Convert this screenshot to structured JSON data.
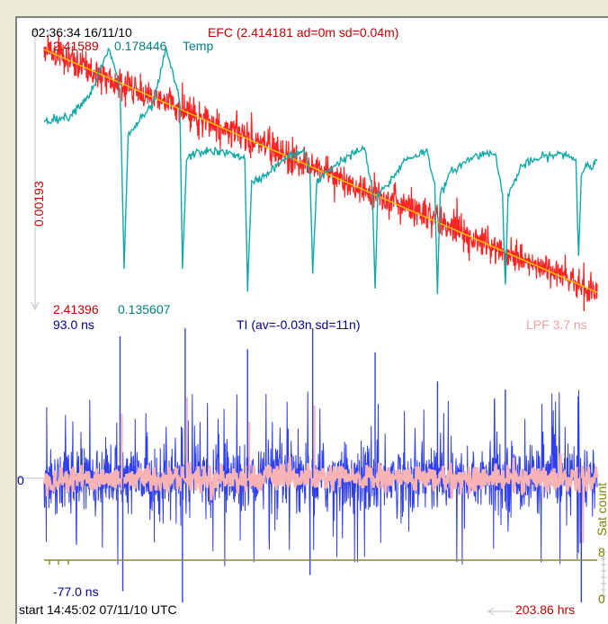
{
  "colors": {
    "efc": "#ff2222",
    "efc_trend": "#f0c800",
    "temp": "#13a8a8",
    "ti": "#2f3ff0",
    "lpf": "#f8b4b4",
    "sat": "#8b8b1a",
    "axis": "#c0c0c0",
    "text_dark": "#000000",
    "text_red": "#c00000",
    "text_navy": "#000090",
    "text_teal": "#008080",
    "text_pink": "#f0a0a0",
    "text_olive": "#808000"
  },
  "top_panel": {
    "timestamp": "02:36:34 16/11/10",
    "efc_label": "EFC (2.414181 ad=0m sd=0.04m)",
    "efc_top_value": "2.41589",
    "temp_top_value": "0.178446",
    "temp_label": "Temp",
    "scale_label": "0.00193",
    "efc_bottom_value": "2.41396",
    "temp_bottom_value": "0.135607"
  },
  "bottom_panel": {
    "ti_top_value": "93.0 ns",
    "ti_label": "TI (av=-0.03n sd=11n)",
    "lpf_label": "LPF 3.7 ns",
    "zero_label": "0",
    "ti_bottom_value": "-77.0 ns",
    "sat_axis_label": "Sat count",
    "sat_top_value": "8",
    "sat_bottom_value": "0"
  },
  "footer": {
    "start_label": "start 14:45:02 07/11/10 UTC",
    "duration_label": "203.86 hrs"
  },
  "chart_data": [
    {
      "type": "line",
      "series": [
        {
          "name": "EFC",
          "x": [
            0,
            20,
            40,
            60,
            80,
            100,
            120,
            140,
            160,
            180,
            200,
            203.86
          ],
          "values": [
            2.41589,
            2.41571,
            2.41553,
            2.41535,
            2.41518,
            2.415,
            2.41482,
            2.41464,
            2.41446,
            2.41428,
            2.4141,
            2.41406
          ]
        },
        {
          "name": "Temp",
          "x": [
            0,
            10,
            15,
            22,
            25,
            40,
            45,
            50,
            70,
            78,
            80,
            95,
            100,
            110,
            120,
            130,
            140,
            150,
            160,
            170,
            180,
            190,
            200,
            203.86
          ],
          "values": [
            0.1665,
            0.169,
            0.1785,
            0.171,
            0.143,
            0.168,
            0.1784,
            0.164,
            0.148,
            0.159,
            0.14,
            0.159,
            0.162,
            0.1605,
            0.158,
            0.161,
            0.159,
            0.1625,
            0.16,
            0.1605,
            0.1595,
            0.16,
            0.161,
            0.16
          ]
        }
      ],
      "xlim": [
        0,
        203.86
      ]
    },
    {
      "type": "line",
      "series": [
        {
          "name": "TI",
          "x": [
            0,
            25,
            50,
            75,
            100,
            125,
            150,
            175,
            203.86
          ],
          "values": [
            0,
            0,
            0,
            0,
            0,
            0,
            0,
            0,
            0
          ]
        },
        {
          "name": "LPF",
          "x": [
            0,
            203.86
          ],
          "values": [
            0,
            0
          ]
        },
        {
          "name": "Sat count",
          "x": [
            0,
            203.86
          ],
          "values": [
            8,
            8
          ]
        }
      ],
      "ylim": [
        -77.0,
        93.0
      ],
      "xlim": [
        0,
        203.86
      ]
    }
  ]
}
